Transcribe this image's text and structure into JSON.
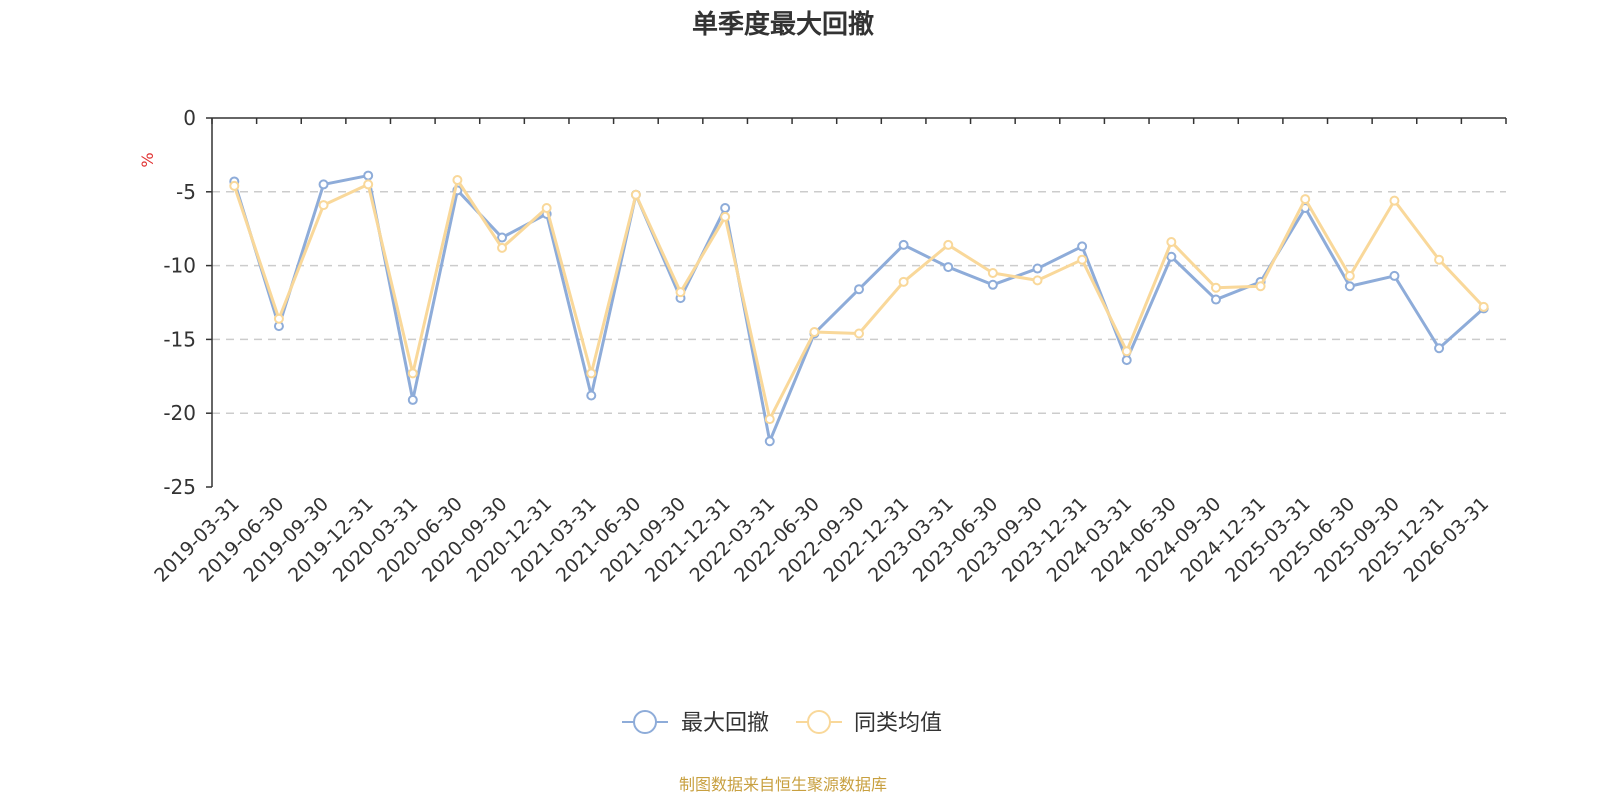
{
  "chart_data": {
    "type": "line",
    "title": "单季度最大回撤",
    "ylabel": "%",
    "ylim": [
      -25,
      0
    ],
    "yticks": [
      0,
      -5,
      -10,
      -15,
      -20,
      -25
    ],
    "ytick_labels": [
      "0",
      "-5",
      "-10",
      "-15",
      "-20",
      "-25"
    ],
    "grid": "horizontal dashed",
    "legend_position": "bottom-center",
    "categories": [
      "2019-03-31",
      "2019-06-30",
      "2019-09-30",
      "2019-12-31",
      "2020-03-31",
      "2020-06-30",
      "2020-09-30",
      "2020-12-31",
      "2021-03-31",
      "2021-06-30",
      "2021-09-30",
      "2021-12-31",
      "2022-03-31",
      "2022-06-30",
      "2022-09-30",
      "2022-12-31",
      "2023-03-31",
      "2023-06-30",
      "2023-09-30",
      "2023-12-31",
      "2024-03-31",
      "2024-06-30",
      "2024-09-30",
      "2024-12-31",
      "2025-03-31",
      "2025-06-30",
      "2025-09-30",
      "2025-12-31",
      "2026-03-31"
    ],
    "series": [
      {
        "name": "最大回撤",
        "color": "#8eacd9",
        "values": [
          -4.3,
          -14.1,
          -4.5,
          -3.9,
          -19.1,
          -4.9,
          -8.1,
          -6.5,
          -18.8,
          -5.2,
          -12.2,
          -6.1,
          -21.9,
          -14.6,
          -11.6,
          -8.6,
          -10.1,
          -11.3,
          -10.2,
          -8.7,
          -16.4,
          -9.4,
          -12.3,
          -11.1,
          -6.1,
          -11.4,
          -10.7,
          -15.6,
          -12.9
        ]
      },
      {
        "name": "同类均值",
        "color": "#f9d89a",
        "values": [
          -4.6,
          -13.6,
          -5.9,
          -4.5,
          -17.3,
          -4.2,
          -8.8,
          -6.1,
          -17.3,
          -5.2,
          -11.8,
          -6.7,
          -20.4,
          -14.5,
          -14.6,
          -11.1,
          -8.6,
          -10.5,
          -11.0,
          -9.6,
          -15.8,
          -8.4,
          -11.5,
          -11.4,
          -5.5,
          -10.7,
          -5.6,
          -9.6,
          -12.8
        ]
      }
    ],
    "source": "制图数据来自恒生聚源数据库",
    "unit_color": "#e03131",
    "source_color": "#c8a040",
    "axis_color": "#333333",
    "grid_color": "#cccccc"
  }
}
